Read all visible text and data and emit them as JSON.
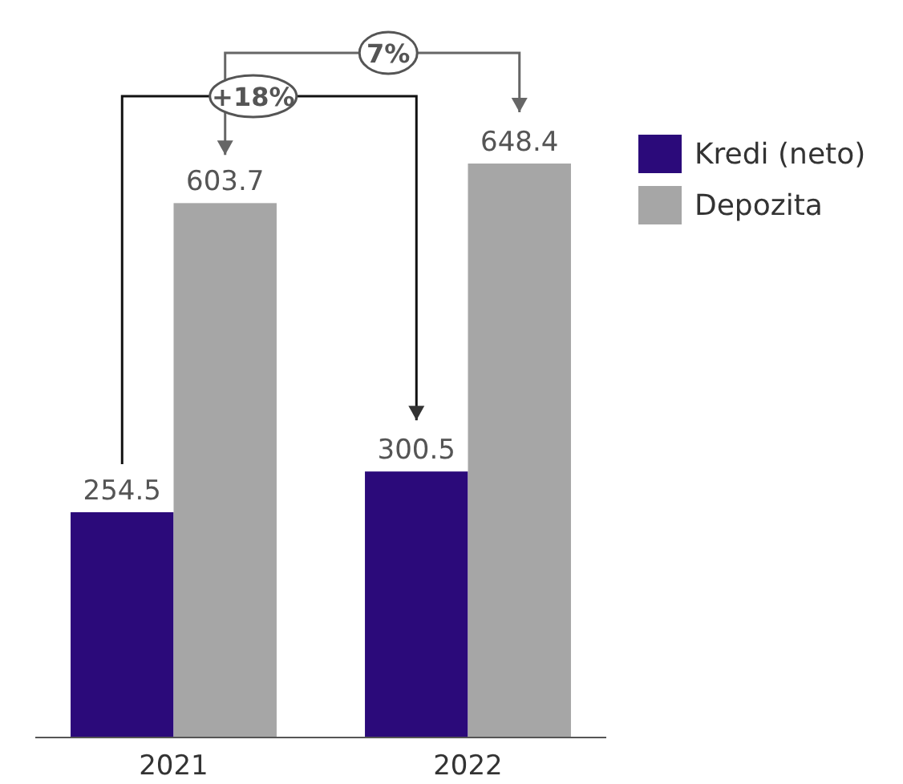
{
  "chart_data": {
    "type": "bar",
    "categories": [
      "2021",
      "2022"
    ],
    "series": [
      {
        "name": "Kredi (neto)",
        "color": "#2b0a7a",
        "values": [
          254.5,
          300.5
        ]
      },
      {
        "name": "Depozita",
        "color": "#a6a6a6",
        "values": [
          603.7,
          648.4
        ]
      }
    ],
    "data_labels": true,
    "legend": "top right",
    "annotations": [
      "+18%",
      "7%"
    ]
  }
}
